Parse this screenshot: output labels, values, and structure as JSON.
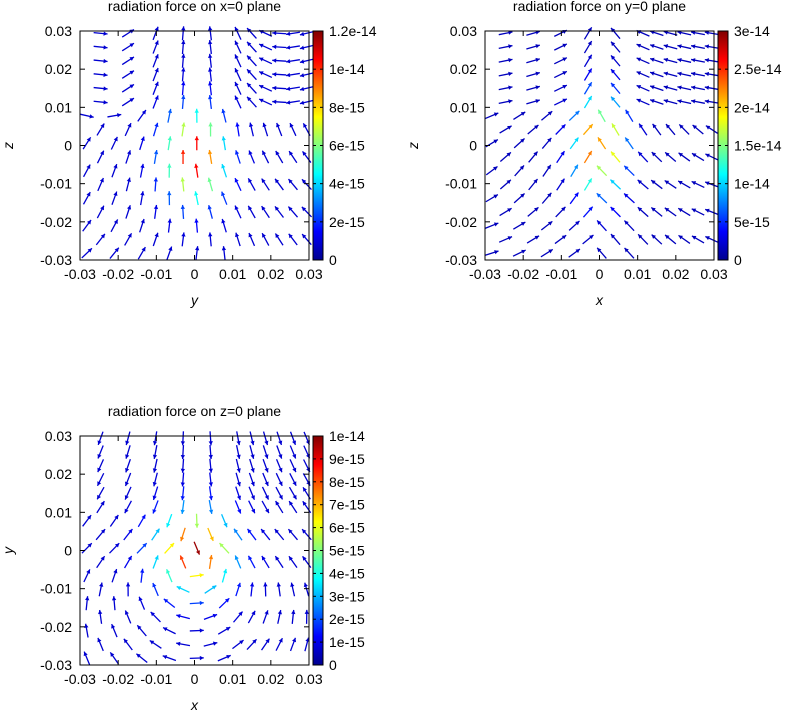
{
  "chart_data": [
    {
      "type": "quiver",
      "title": "radiation force on x=0 plane",
      "xlabel": "y",
      "ylabel": "z",
      "xlim": [
        -0.03,
        0.03
      ],
      "ylim": [
        -0.03,
        0.03
      ],
      "x_ticks": [
        "-0.03",
        "-0.02",
        "-0.01",
        "0",
        "0.01",
        "0.02",
        "0.03"
      ],
      "y_ticks": [
        "0.03",
        "0.02",
        "0.01",
        "0",
        "-0.01",
        "-0.02",
        "-0.03"
      ],
      "colorbar": {
        "colormap": "jet",
        "range": [
          0,
          1.2e-14
        ],
        "ticks": [
          "1.2e-14",
          "1e-14",
          "8e-15",
          "6e-15",
          "4e-15",
          "2e-15",
          "0"
        ],
        "tick_values": [
          1.2e-14,
          1e-14,
          8e-15,
          6e-15,
          4e-15,
          2e-15,
          0
        ]
      },
      "grid": "none",
      "field_pattern": "x0"
    },
    {
      "type": "quiver",
      "title": "radiation force on y=0 plane",
      "xlabel": "x",
      "ylabel": "z",
      "xlim": [
        -0.03,
        0.03
      ],
      "ylim": [
        -0.03,
        0.03
      ],
      "x_ticks": [
        "-0.03",
        "-0.02",
        "-0.01",
        "0",
        "0.01",
        "0.02",
        "0.03"
      ],
      "y_ticks": [
        "0.03",
        "0.02",
        "0.01",
        "0",
        "-0.01",
        "-0.02",
        "-0.03"
      ],
      "colorbar": {
        "colormap": "jet",
        "range": [
          0,
          3e-14
        ],
        "ticks": [
          "3e-14",
          "2.5e-14",
          "2e-14",
          "1.5e-14",
          "1e-14",
          "5e-15",
          "0"
        ],
        "tick_values": [
          3e-14,
          2.5e-14,
          2e-14,
          1.5e-14,
          1e-14,
          5e-15,
          0
        ]
      },
      "grid": "none",
      "field_pattern": "y0"
    },
    {
      "type": "quiver",
      "title": "radiation force on z=0 plane",
      "xlabel": "x",
      "ylabel": "y",
      "xlim": [
        -0.03,
        0.03
      ],
      "ylim": [
        -0.03,
        0.03
      ],
      "x_ticks": [
        "-0.03",
        "-0.02",
        "-0.01",
        "0",
        "0.01",
        "0.02",
        "0.03"
      ],
      "y_ticks": [
        "0.03",
        "0.02",
        "0.01",
        "0",
        "-0.01",
        "-0.02",
        "-0.03"
      ],
      "colorbar": {
        "colormap": "jet",
        "range": [
          0,
          1e-14
        ],
        "ticks": [
          "1e-14",
          "9e-15",
          "8e-15",
          "7e-15",
          "6e-15",
          "5e-15",
          "4e-15",
          "3e-15",
          "2e-15",
          "1e-15",
          "0"
        ],
        "tick_values": [
          1e-14,
          9e-15,
          8e-15,
          7e-15,
          6e-15,
          5e-15,
          4e-15,
          3e-15,
          2e-15,
          1e-15,
          0
        ]
      },
      "grid": "none",
      "field_pattern": "z0"
    }
  ]
}
